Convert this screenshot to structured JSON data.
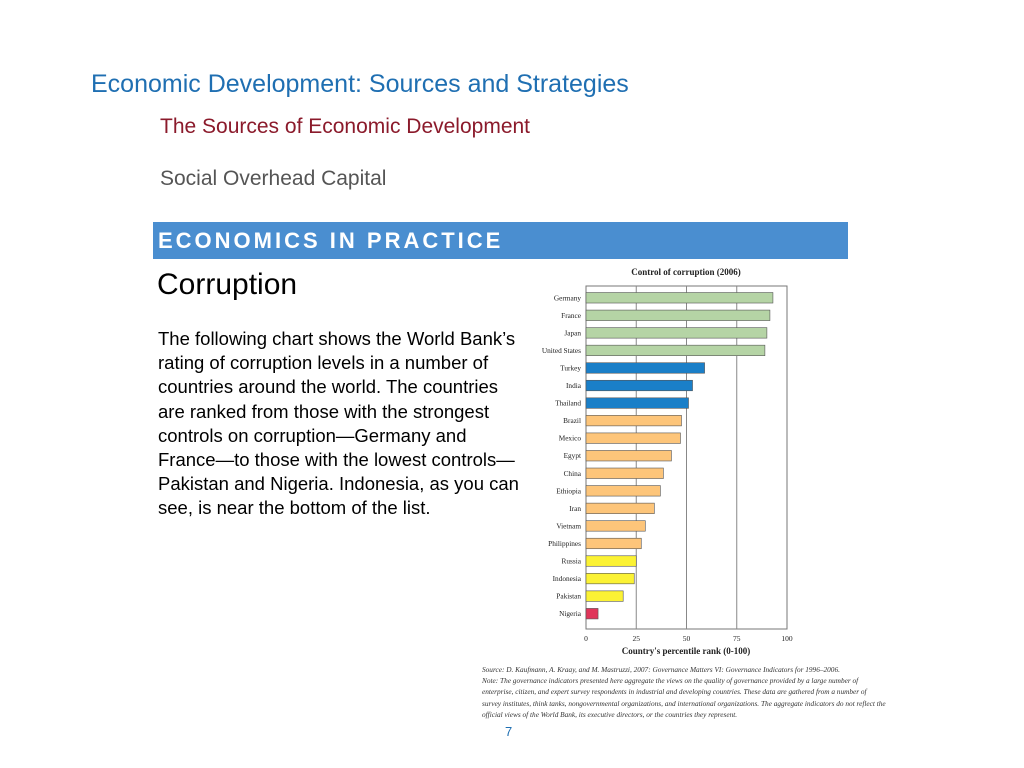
{
  "slide": {
    "title": "Economic Development:  Sources and Strategies",
    "subtitle": "The Sources of Economic Development",
    "section": "Social Overhead Capital",
    "banner": "ECONOMICS IN PRACTICE",
    "heading": "Corruption",
    "body": "The following chart shows the World Bank’s rating of corruption levels in a number of countries around the world. The countries are ranked from those with the strongest controls on corruption—Germany and France—to those with the lowest controls—Pakistan and Nigeria. Indonesia, as you can see, is near the bottom of the list.",
    "source": "Source: D. Kaufmann, A. Kraay, and M. Mastruzzi, 2007: Governance Matters VI: Governance Indicators for 1996–2006.",
    "note": "Note: The governance indicators presented here aggregate the views on the quality of governance provided by a large number of enterprise, citizen, and expert survey respondents in industrial and developing countries. These data are gathered from a number of survey institutes, think tanks, nongovernmental organizations, and international organizations. The aggregate indicators do not reflect the official views of the World Bank, its executive directors, or the countries they represent.",
    "page_number": "7"
  },
  "colors": {
    "title": "#1f6fb2",
    "subtitle": "#8b1a2b",
    "banner": "#4a8ed0",
    "bar_green": "#b5d4a5",
    "bar_blue": "#1a7fc8",
    "bar_orange": "#fdc57a",
    "bar_yellow": "#fbf234",
    "bar_red": "#e0365a"
  },
  "chart_data": {
    "type": "bar",
    "orientation": "horizontal",
    "title": "Control of corruption (2006)",
    "xlabel": "Country's percentile rank (0-100)",
    "ylabel": "",
    "xlim": [
      0,
      100
    ],
    "xticks": [
      0,
      25,
      50,
      75,
      100
    ],
    "grid": true,
    "categories": [
      "Germany",
      "France",
      "Japan",
      "United States",
      "Turkey",
      "India",
      "Thailand",
      "Brazil",
      "Mexico",
      "Egypt",
      "China",
      "Ethiopia",
      "Iran",
      "Vietnam",
      "Philippines",
      "Russia",
      "Indonesia",
      "Pakistan",
      "Nigeria"
    ],
    "values": [
      93,
      91.5,
      90,
      89,
      59,
      53,
      51,
      47.5,
      47,
      42.5,
      38.5,
      37,
      34,
      29.5,
      27.5,
      25,
      24,
      18.5,
      6
    ],
    "bar_colors": [
      "#b5d4a5",
      "#b5d4a5",
      "#b5d4a5",
      "#b5d4a5",
      "#1a7fc8",
      "#1a7fc8",
      "#1a7fc8",
      "#fdc57a",
      "#fdc57a",
      "#fdc57a",
      "#fdc57a",
      "#fdc57a",
      "#fdc57a",
      "#fdc57a",
      "#fdc57a",
      "#fbf234",
      "#fbf234",
      "#fbf234",
      "#e0365a"
    ]
  }
}
